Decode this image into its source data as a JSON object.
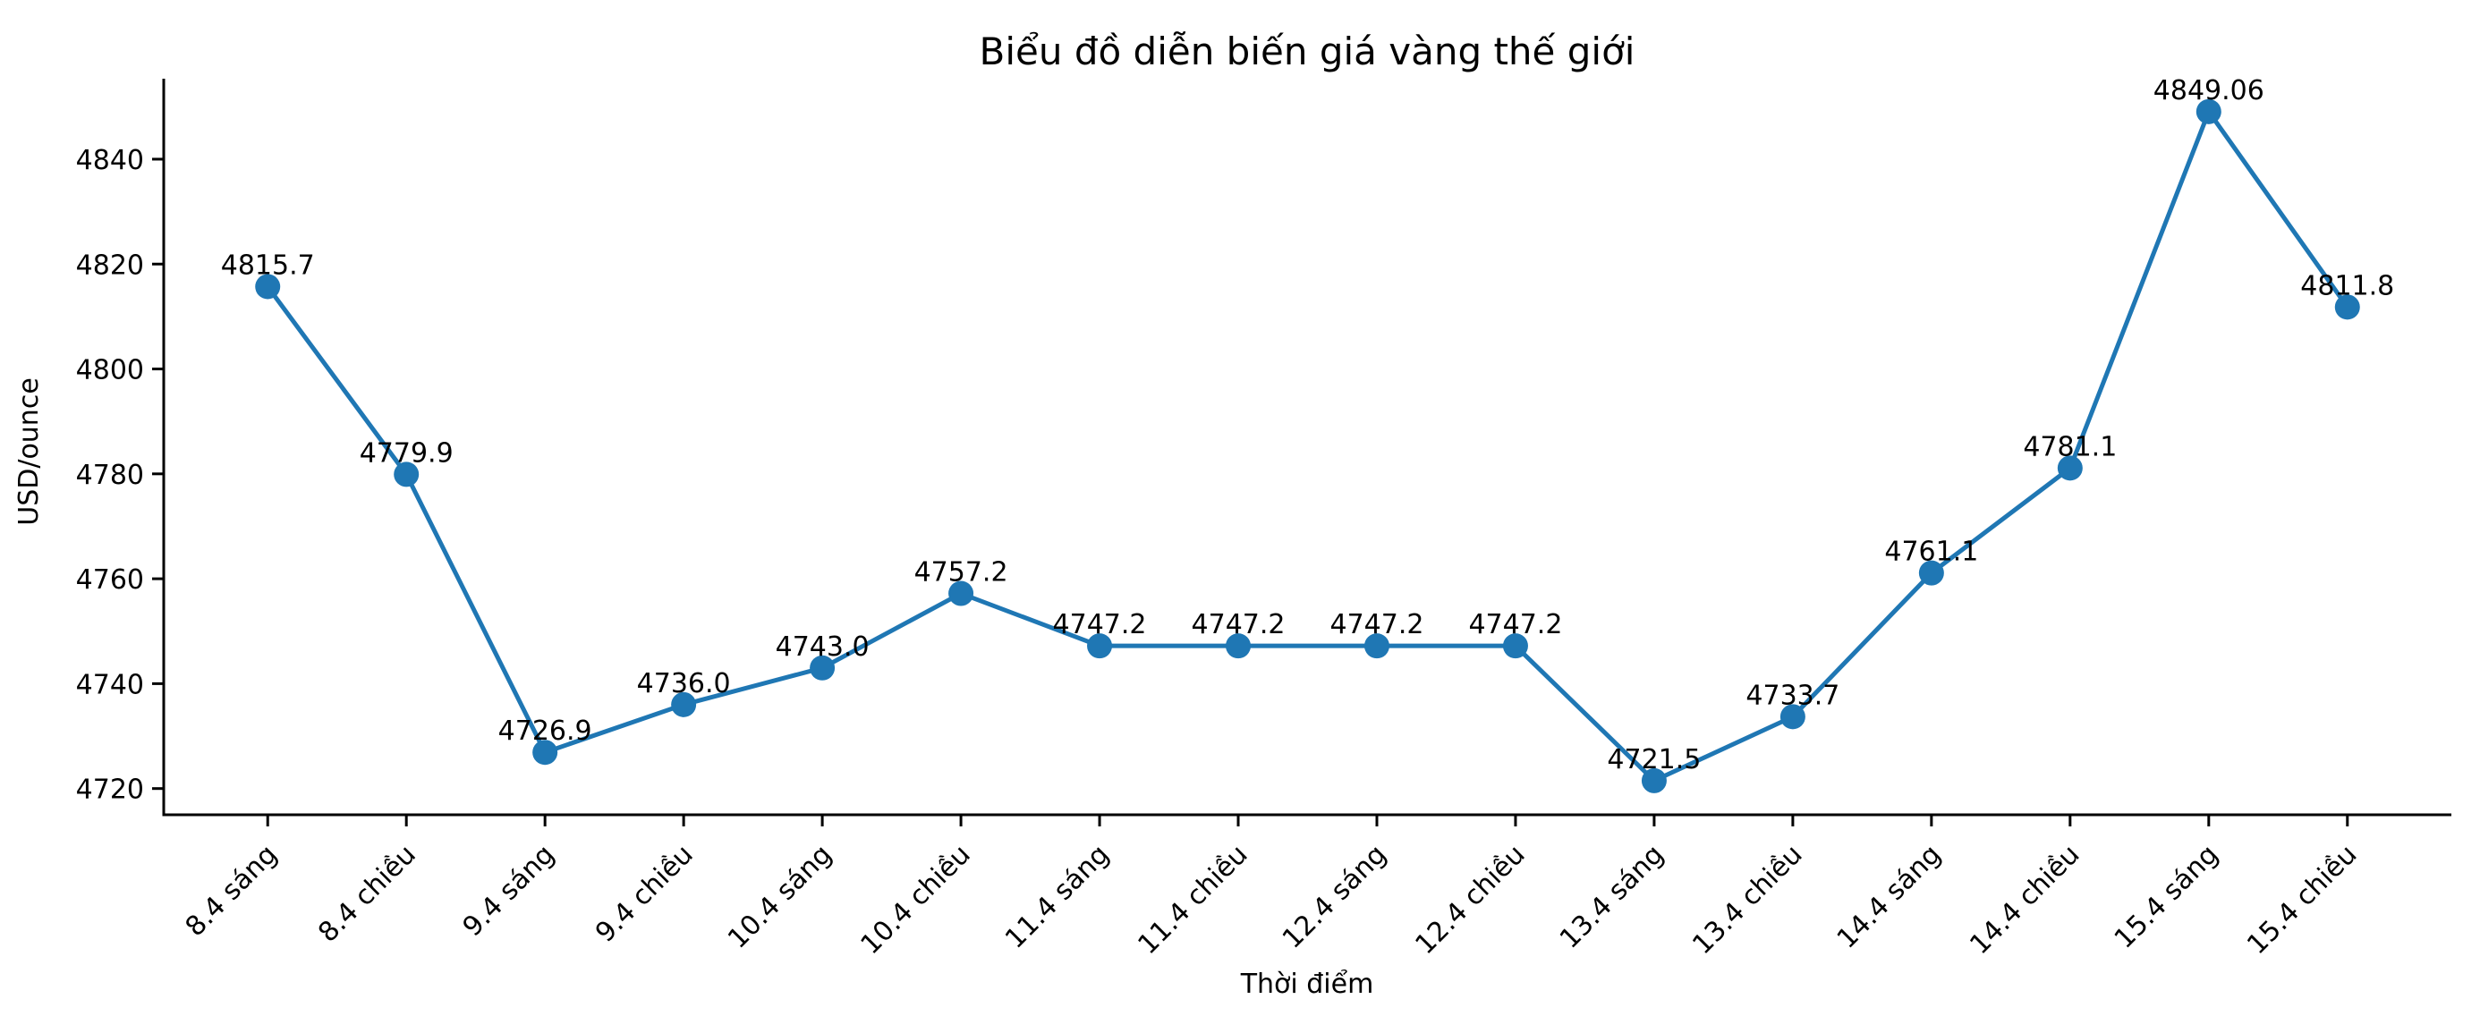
{
  "chart_data": {
    "type": "line",
    "title": "Biểu đồ diễn biến giá vàng thế giới",
    "xlabel": "Thời điểm",
    "ylabel": "USD/ounce",
    "categories": [
      "8.4 sáng",
      "8.4 chiều",
      "9.4 sáng",
      "9.4 chiều",
      "10.4 sáng",
      "10.4 chiều",
      "11.4 sáng",
      "11.4 chiều",
      "12.4 sáng",
      "12.4 chiều",
      "13.4 sáng",
      "13.4 chiều",
      "14.4 sáng",
      "14.4 chiều",
      "15.4 sáng",
      "15.4 chiều"
    ],
    "values": [
      4815.7,
      4779.9,
      4726.9,
      4736.0,
      4743.0,
      4757.2,
      4747.2,
      4747.2,
      4747.2,
      4747.2,
      4721.5,
      4733.7,
      4761.1,
      4781.1,
      4849.06,
      4811.8
    ],
    "point_labels": [
      "4815.7",
      "4779.9",
      "4726.9",
      "4736.0",
      "4743.0",
      "4757.2",
      "4747.2",
      "4747.2",
      "4747.2",
      "4747.2",
      "4721.5",
      "4733.7",
      "4761.1",
      "4781.1",
      "4849.06",
      "4811.8"
    ],
    "yticks": [
      4720,
      4740,
      4760,
      4780,
      4800,
      4820,
      4840
    ],
    "ylim": [
      4715,
      4855
    ],
    "line_color": "#1f77b4",
    "marker": "circle",
    "grid": false,
    "legend_position": "none",
    "label_rotation_deg": 45
  }
}
